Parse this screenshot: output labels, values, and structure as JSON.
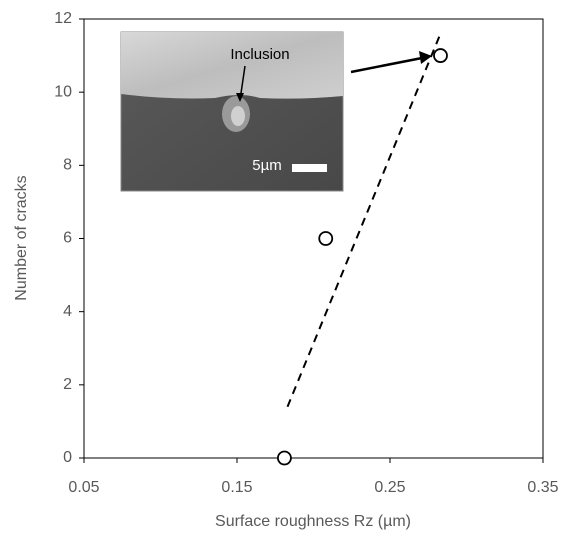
{
  "chart_data": {
    "type": "scatter",
    "xlabel": "Surface roughness Rz (µm)",
    "ylabel": "Number of cracks",
    "x": [
      0.181,
      0.208,
      0.283
    ],
    "values": [
      0,
      6,
      11
    ],
    "color": "#000000",
    "trendline": {
      "x": [
        0.183,
        0.283
      ],
      "values": [
        1.4,
        11.6
      ]
    },
    "xlim": [
      0.05,
      0.35
    ],
    "xticks": [
      0.05,
      0.15,
      0.25,
      0.35
    ],
    "ylim": [
      0,
      12
    ],
    "yticks": [
      0,
      2,
      4,
      6,
      8,
      10,
      12
    ],
    "inset": {
      "label": "Inclusion",
      "scale_label": "5µm"
    }
  }
}
